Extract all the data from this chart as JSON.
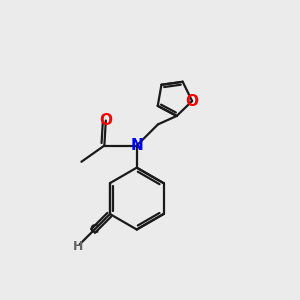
{
  "background_color": "#ebebeb",
  "bond_color": "#1a1a1a",
  "N_color": "#0000ff",
  "O_color": "#ff0000",
  "H_color": "#666666",
  "C_color": "#1a1a1a",
  "line_width": 1.6,
  "figsize": [
    3.0,
    3.0
  ],
  "dpi": 100,
  "xlim": [
    0,
    10
  ],
  "ylim": [
    0,
    10
  ]
}
